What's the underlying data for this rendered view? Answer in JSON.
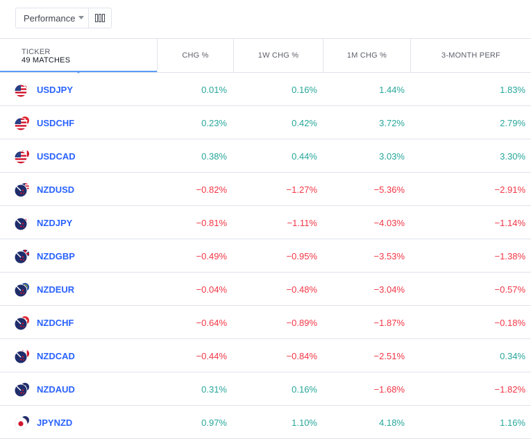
{
  "toolbar": {
    "view": "Performance",
    "columns_icon": "columns-icon"
  },
  "header": {
    "ticker_label": "TICKER",
    "matches": "49 MATCHES",
    "columns": [
      "CHG %",
      "1W CHG %",
      "1M CHG %",
      "3-MONTH PERF"
    ]
  },
  "rows": [
    {
      "symbol": "USDJPY",
      "flag_a": "US",
      "flag_b": "JP",
      "chg": "0.01%",
      "w1": "0.16%",
      "m1": "1.44%",
      "m3": "1.83%"
    },
    {
      "symbol": "USDCHF",
      "flag_a": "US",
      "flag_b": "CH",
      "chg": "0.23%",
      "w1": "0.42%",
      "m1": "3.72%",
      "m3": "2.79%"
    },
    {
      "symbol": "USDCAD",
      "flag_a": "US",
      "flag_b": "CA",
      "chg": "0.38%",
      "w1": "0.44%",
      "m1": "3.03%",
      "m3": "3.30%"
    },
    {
      "symbol": "NZDUSD",
      "flag_a": "NZ",
      "flag_b": "US",
      "chg": "−0.82%",
      "w1": "−1.27%",
      "m1": "−5.36%",
      "m3": "−2.91%"
    },
    {
      "symbol": "NZDJPY",
      "flag_a": "NZ",
      "flag_b": "JP",
      "chg": "−0.81%",
      "w1": "−1.11%",
      "m1": "−4.03%",
      "m3": "−1.14%"
    },
    {
      "symbol": "NZDGBP",
      "flag_a": "NZ",
      "flag_b": "GB",
      "chg": "−0.49%",
      "w1": "−0.95%",
      "m1": "−3.53%",
      "m3": "−1.38%"
    },
    {
      "symbol": "NZDEUR",
      "flag_a": "NZ",
      "flag_b": "EU",
      "chg": "−0.04%",
      "w1": "−0.48%",
      "m1": "−3.04%",
      "m3": "−0.57%"
    },
    {
      "symbol": "NZDCHF",
      "flag_a": "NZ",
      "flag_b": "CH",
      "chg": "−0.64%",
      "w1": "−0.89%",
      "m1": "−1.87%",
      "m3": "−0.18%"
    },
    {
      "symbol": "NZDCAD",
      "flag_a": "NZ",
      "flag_b": "CA",
      "chg": "−0.44%",
      "w1": "−0.84%",
      "m1": "−2.51%",
      "m3": "0.34%"
    },
    {
      "symbol": "NZDAUD",
      "flag_a": "NZ",
      "flag_b": "AU",
      "chg": "0.31%",
      "w1": "0.16%",
      "m1": "−1.68%",
      "m3": "−1.82%"
    },
    {
      "symbol": "JPYNZD",
      "flag_a": "JP",
      "flag_b": "NZ",
      "chg": "0.97%",
      "w1": "1.10%",
      "m1": "4.18%",
      "m3": "1.16%"
    }
  ],
  "colors": {
    "positive": "#26a69a",
    "negative": "#f23645",
    "symbol": "#2962ff",
    "accent": "#5b9cf6"
  }
}
